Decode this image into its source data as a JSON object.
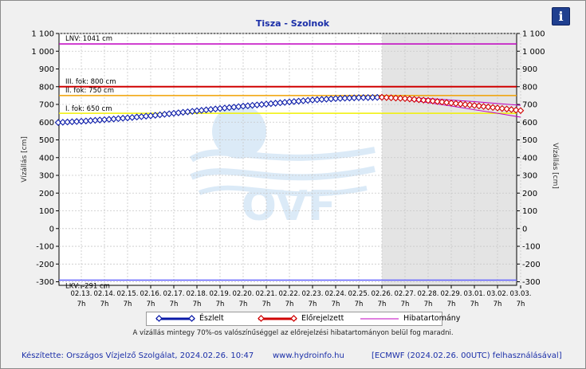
{
  "chart_data": {
    "type": "line",
    "title": "Tisza - Szolnok",
    "ylabel_left": "Vízállás [cm]",
    "ylabel_right": "Vízállás [cm]",
    "ylim": [
      -320,
      1100
    ],
    "yticks": [
      -300,
      -200,
      -100,
      0,
      100,
      200,
      300,
      400,
      500,
      600,
      700,
      800,
      900,
      1000,
      1100
    ],
    "ytick_labels": [
      "-300",
      "-200",
      "-100",
      "0",
      "100",
      "200",
      "300",
      "400",
      "500",
      "600",
      "700",
      "800",
      "900",
      "1 000",
      "1 100"
    ],
    "x_ticks": [
      {
        "date": "02.13.",
        "hour": "7h"
      },
      {
        "date": "02.14.",
        "hour": "7h"
      },
      {
        "date": "02.15.",
        "hour": "7h"
      },
      {
        "date": "02.16.",
        "hour": "7h"
      },
      {
        "date": "02.17.",
        "hour": "7h"
      },
      {
        "date": "02.18.",
        "hour": "7h"
      },
      {
        "date": "02.19.",
        "hour": "7h"
      },
      {
        "date": "02.20.",
        "hour": "7h"
      },
      {
        "date": "02.21.",
        "hour": "7h"
      },
      {
        "date": "02.22.",
        "hour": "7h"
      },
      {
        "date": "02.23.",
        "hour": "7h"
      },
      {
        "date": "02.24.",
        "hour": "7h"
      },
      {
        "date": "02.25.",
        "hour": "7h"
      },
      {
        "date": "02.26.",
        "hour": "7h"
      },
      {
        "date": "02.27.",
        "hour": "7h"
      },
      {
        "date": "02.28.",
        "hour": "7h"
      },
      {
        "date": "02.29.",
        "hour": "7h"
      },
      {
        "date": "03.01.",
        "hour": "7h"
      },
      {
        "date": "03.02.",
        "hour": "7h"
      },
      {
        "date": "03.03.",
        "hour": "7h"
      }
    ],
    "forecast_start": "02.26.",
    "reference_lines": [
      {
        "label": "LNV: 1041 cm",
        "value": 1041,
        "color": "#c000c0"
      },
      {
        "label": "III. fok: 800 cm",
        "value": 800,
        "color": "#d00000"
      },
      {
        "label": "II. fok: 750 cm",
        "value": 750,
        "color": "#f0a000"
      },
      {
        "label": "I. fok: 650 cm",
        "value": 650,
        "color": "#f0f000"
      },
      {
        "label": "LKV: -291 cm",
        "value": -291,
        "color": "#6060ff"
      }
    ],
    "series": [
      {
        "name": "Észlelt",
        "color": "#0a1aa8",
        "points": [
          [
            "02.12. 7h",
            598
          ],
          [
            "02.13. 7h",
            605
          ],
          [
            "02.14. 7h",
            614
          ],
          [
            "02.15. 7h",
            624
          ],
          [
            "02.16. 7h",
            636
          ],
          [
            "02.17. 7h",
            650
          ],
          [
            "02.18. 7h",
            664
          ],
          [
            "02.19. 7h",
            677
          ],
          [
            "02.20. 7h",
            690
          ],
          [
            "02.21. 7h",
            702
          ],
          [
            "02.22. 7h",
            714
          ],
          [
            "02.23. 7h",
            725
          ],
          [
            "02.24. 7h",
            733
          ],
          [
            "02.25. 7h",
            738
          ],
          [
            "02.26. 7h",
            740
          ]
        ]
      },
      {
        "name": "Előrejelzett",
        "color": "#d00000",
        "points": [
          [
            "02.26. 7h",
            740
          ],
          [
            "02.27. 7h",
            733
          ],
          [
            "02.28. 7h",
            722
          ],
          [
            "02.29. 7h",
            708
          ],
          [
            "03.01. 7h",
            694
          ],
          [
            "03.02. 7h",
            680
          ],
          [
            "03.03. 7h",
            665
          ]
        ]
      },
      {
        "name": "Hibatartomány",
        "color": "#c000c0",
        "upper": [
          [
            "02.26. 7h",
            740
          ],
          [
            "02.27. 7h",
            738
          ],
          [
            "02.28. 7h",
            733
          ],
          [
            "02.29. 7h",
            725
          ],
          [
            "03.01. 7h",
            716
          ],
          [
            "03.02. 7h",
            705
          ],
          [
            "03.03. 7h",
            695
          ]
        ],
        "lower": [
          [
            "02.26. 7h",
            740
          ],
          [
            "02.27. 7h",
            727
          ],
          [
            "02.28. 7h",
            710
          ],
          [
            "02.29. 7h",
            691
          ],
          [
            "03.01. 7h",
            670
          ],
          [
            "03.02. 7h",
            650
          ],
          [
            "03.03. 7h",
            628
          ]
        ]
      }
    ],
    "legend_position": "bottom",
    "grid": true
  },
  "legend": {
    "observed": "Észlelt",
    "forecast": "Előrejelzett",
    "error_range": "Hibatartomány"
  },
  "note": "A vízállás mintegy 70%-os valószínűséggel az előrejelzési hibatartományon belül fog maradni.",
  "footer": {
    "made_by": "Készítette: Országos Vízjelző Szolgálat, 2024.02.26. 10:47",
    "website": "www.hydroinfo.hu",
    "model": "[ECMWF (2024.02.26. 00UTC) felhasználásával]"
  },
  "watermark": "OVF",
  "info_button": "i"
}
